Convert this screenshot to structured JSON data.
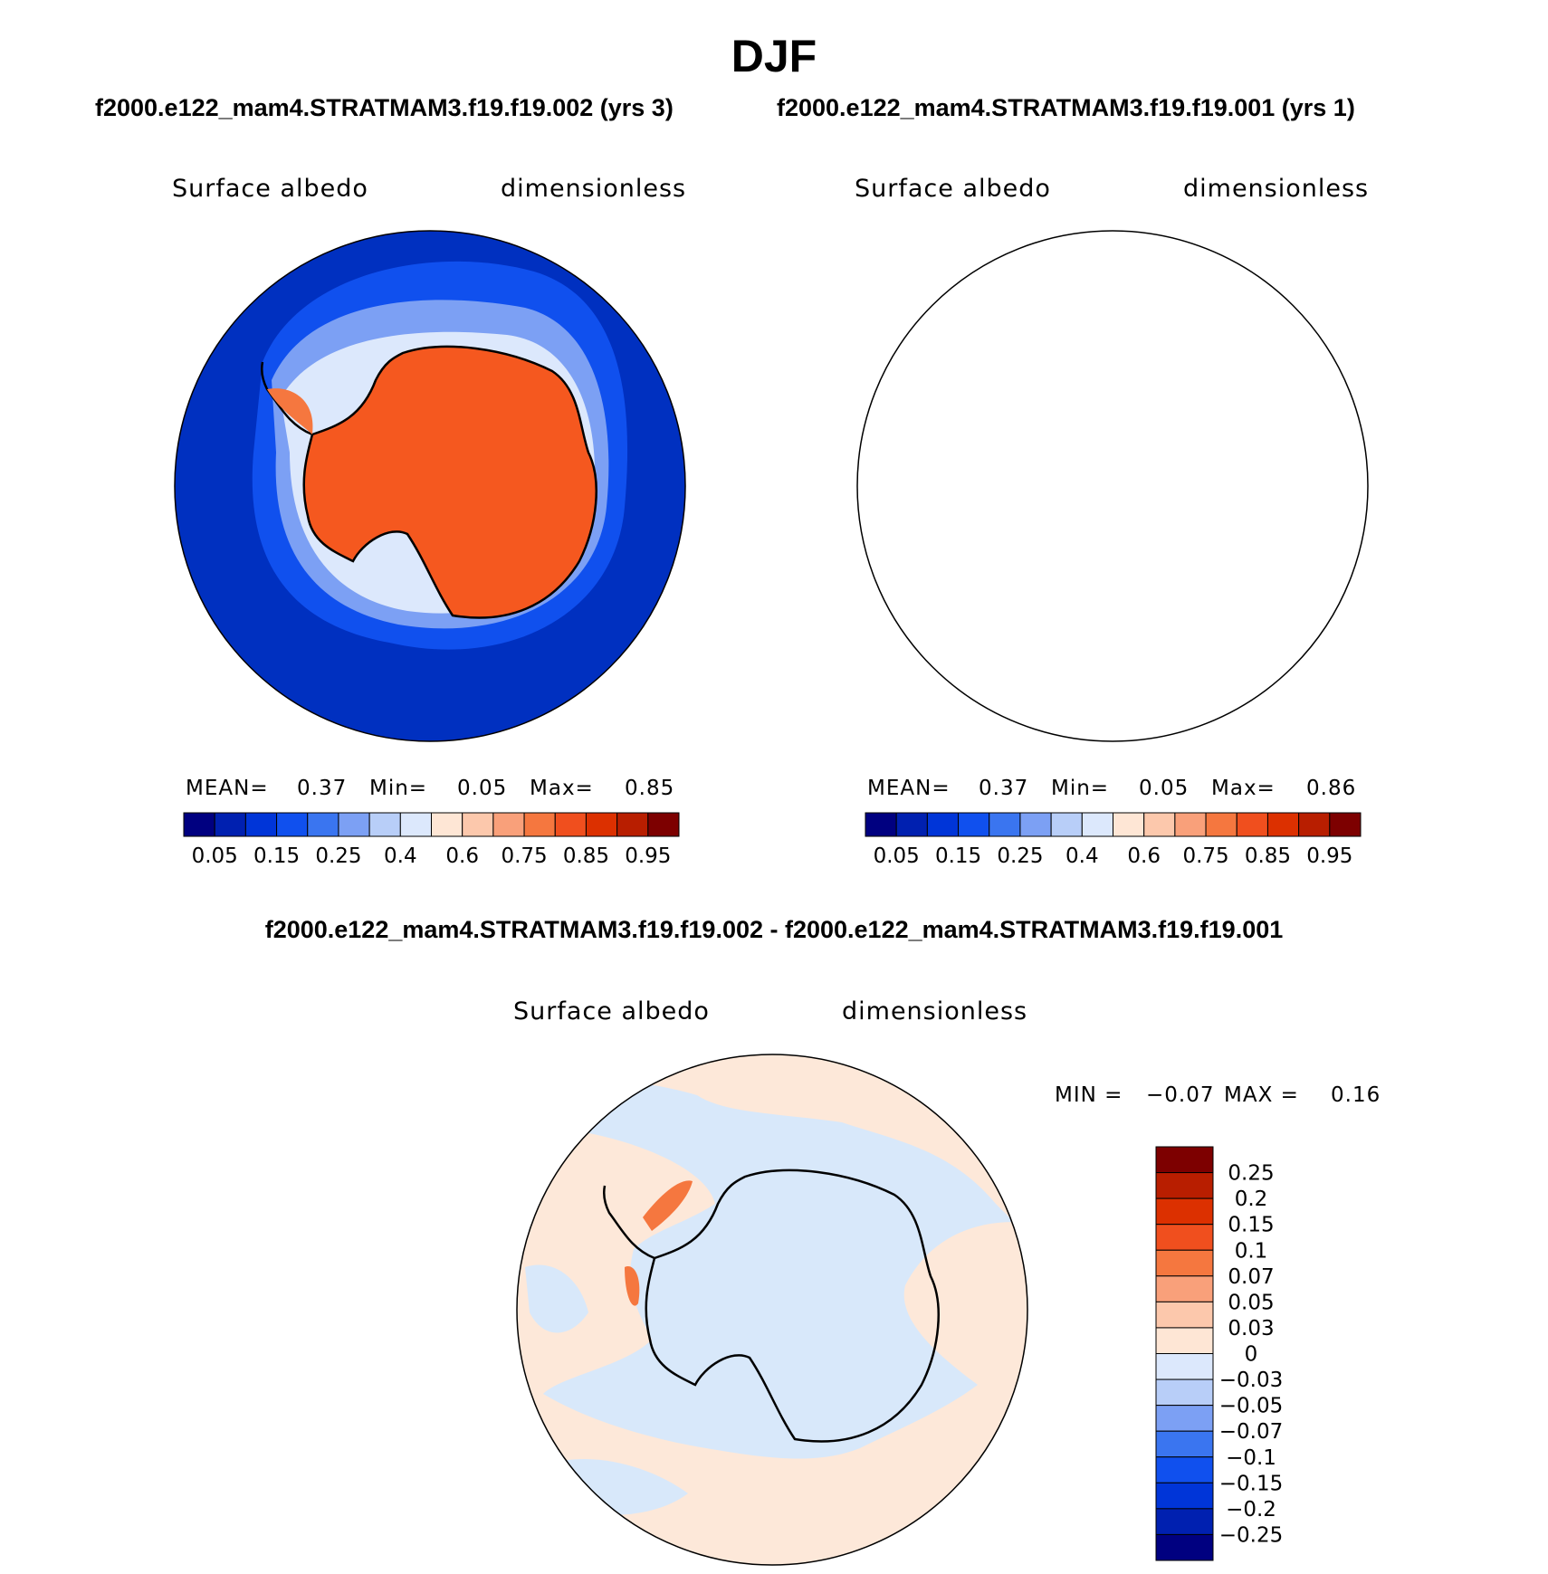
{
  "title": "DJF",
  "case_titles": {
    "left": "f2000.e122_mam4.STRATMAM3.f19.f19.002 (yrs 3)",
    "right": "f2000.e122_mam4.STRATMAM3.f19.f19.001 (yrs 1)"
  },
  "diff_title": "f2000.e122_mam4.STRATMAM3.f19.f19.002 - f2000.e122_mam4.STRATMAM3.f19.f19.001",
  "panels": [
    {
      "variable": "Surface albedo",
      "units": "dimensionless",
      "mean_label": "MEAN=",
      "mean": "0.37",
      "min_label": "Min=",
      "min": "0.05",
      "max_label": "Max=",
      "max": "0.85"
    },
    {
      "variable": "Surface albedo",
      "units": "dimensionless",
      "mean_label": "MEAN=",
      "mean": "0.37",
      "min_label": "Min=",
      "min": "0.05",
      "max_label": "Max=",
      "max": "0.86"
    },
    {
      "variable": "Surface albedo",
      "units": "dimensionless",
      "min_label": "MIN =",
      "min": "−0.07",
      "max_label": "MAX =",
      "max": "0.16"
    }
  ],
  "colorbar_top": {
    "levels": [
      "0.05",
      "0.15",
      "0.25",
      "0.4",
      "0.6",
      "0.75",
      "0.85",
      "0.95"
    ],
    "colors": [
      "#000080",
      "#0020b0",
      "#0035d8",
      "#1050ee",
      "#3a75f0",
      "#7ca0f4",
      "#b8cef8",
      "#dce8fc",
      "#fee6d5",
      "#fcc8ac",
      "#f9a07a",
      "#f5773f",
      "#f04f1e",
      "#dc3000",
      "#b81e00",
      "#7d0000"
    ]
  },
  "colorbar_diff": {
    "levels": [
      "0.25",
      "0.2",
      "0.15",
      "0.1",
      "0.07",
      "0.05",
      "0.03",
      "0",
      "−0.03",
      "−0.05",
      "−0.07",
      "−0.1",
      "−0.15",
      "−0.2",
      "−0.25"
    ],
    "colors": [
      "#7d0000",
      "#b81e00",
      "#dc3000",
      "#f04f1e",
      "#f5773f",
      "#f9a07a",
      "#fcc8ac",
      "#fee6d5",
      "#dce8fc",
      "#b8cef8",
      "#7ca0f4",
      "#3a75f0",
      "#1050ee",
      "#0035d8",
      "#0020b0",
      "#000080"
    ]
  },
  "map_colors": {
    "ocean": "#0030c0",
    "ice": "#f5581f",
    "diff_pos": "#fde8d9",
    "diff_neg": "#d8e8fa"
  }
}
